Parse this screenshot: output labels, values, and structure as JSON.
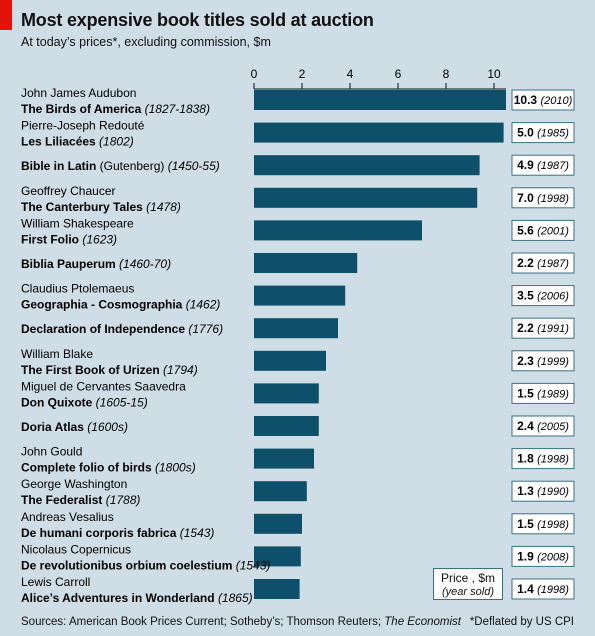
{
  "header": {
    "title": "Most expensive book titles sold at auction",
    "subtitle": "At today’s prices*, excluding commission, $m"
  },
  "legend": {
    "line1": "Price , $m",
    "line2": "(year sold)"
  },
  "footer": {
    "sources_prefix": "Sources: American Book Prices Current; Sotheby’s; Thomson Reuters; ",
    "sources_italic": "The Economist",
    "note": "*Deflated by US CPI"
  },
  "colors": {
    "bar": "#0e4f69",
    "background": "#cfdde6",
    "box_border": "#3b6f86",
    "accent": "#e3120b"
  },
  "chart_data": {
    "type": "bar",
    "orientation": "horizontal",
    "xlim": [
      0,
      10.5
    ],
    "x_ticks": [
      "0",
      "2",
      "4",
      "6",
      "8",
      "10"
    ],
    "x_tick_values": [
      0,
      2,
      4,
      6,
      8,
      10
    ],
    "grid": false,
    "items": [
      {
        "author": "John James Audubon",
        "title": "The Birds of America",
        "years": "(1827-1838)",
        "value": 10.5,
        "price": "10.3",
        "year_sold": "(2010)"
      },
      {
        "author": "Pierre-Joseph Redouté",
        "title": "Les Liliacées",
        "years": "(1802)",
        "value": 10.4,
        "price": "5.0",
        "year_sold": "(1985)"
      },
      {
        "author": "",
        "title": "Bible in Latin",
        "title_plain": " (Gutenberg) ",
        "years": "(1450-55)",
        "value": 9.4,
        "price": "4.9",
        "year_sold": "(1987)"
      },
      {
        "author": "Geoffrey Chaucer",
        "title": "The Canterbury Tales",
        "years": "(1478)",
        "value": 9.3,
        "price": "7.0",
        "year_sold": "(1998)"
      },
      {
        "author": "William Shakespeare",
        "title": "First Folio",
        "years": "(1623)",
        "value": 7.0,
        "price": "5.6",
        "year_sold": "(2001)"
      },
      {
        "author": "",
        "title": "Biblia Pauperum",
        "years": "(1460-70)",
        "value": 4.3,
        "price": "2.2",
        "year_sold": "(1987)"
      },
      {
        "author": "Claudius Ptolemaeus",
        "title": "Geographia - Cosmographia",
        "years": "(1462)",
        "value": 3.8,
        "price": "3.5",
        "year_sold": "(2006)"
      },
      {
        "author": "",
        "title": "Declaration of Independence",
        "years": "(1776)",
        "value": 3.5,
        "price": "2.2",
        "year_sold": "(1991)"
      },
      {
        "author": "William Blake",
        "title": "The First Book of Urizen",
        "years": "(1794)",
        "value": 3.0,
        "price": "2.3",
        "year_sold": "(1999)"
      },
      {
        "author": "Miguel de Cervantes Saavedra",
        "title": "Don Quixote",
        "years": "(1605-15)",
        "value": 2.7,
        "price": "1.5",
        "year_sold": "(1989)"
      },
      {
        "author": "",
        "title": "Doria Atlas",
        "years": "(1600s)",
        "value": 2.7,
        "price": "2.4",
        "year_sold": "(2005)"
      },
      {
        "author": "John Gould",
        "title": "Complete folio of birds",
        "years": "(1800s)",
        "value": 2.5,
        "price": "1.8",
        "year_sold": "(1998)"
      },
      {
        "author": "George Washington",
        "title": "The Federalist",
        "years": "(1788)",
        "value": 2.2,
        "price": "1.3",
        "year_sold": "(1990)"
      },
      {
        "author": "Andreas Vesalius",
        "title": "De humani corporis fabrica",
        "years": "(1543)",
        "value": 2.0,
        "price": "1.5",
        "year_sold": "(1998)"
      },
      {
        "author": "Nicolaus Copernicus",
        "title": "De revolutionibus orbium coelestium",
        "years": "(1543)",
        "value": 1.95,
        "price": "1.9",
        "year_sold": "(2008)"
      },
      {
        "author": "Lewis Carroll",
        "title": "Alice’s Adventures in Wonderland",
        "years": "(1865)",
        "value": 1.9,
        "price": "1.4",
        "year_sold": "(1998)"
      }
    ]
  }
}
